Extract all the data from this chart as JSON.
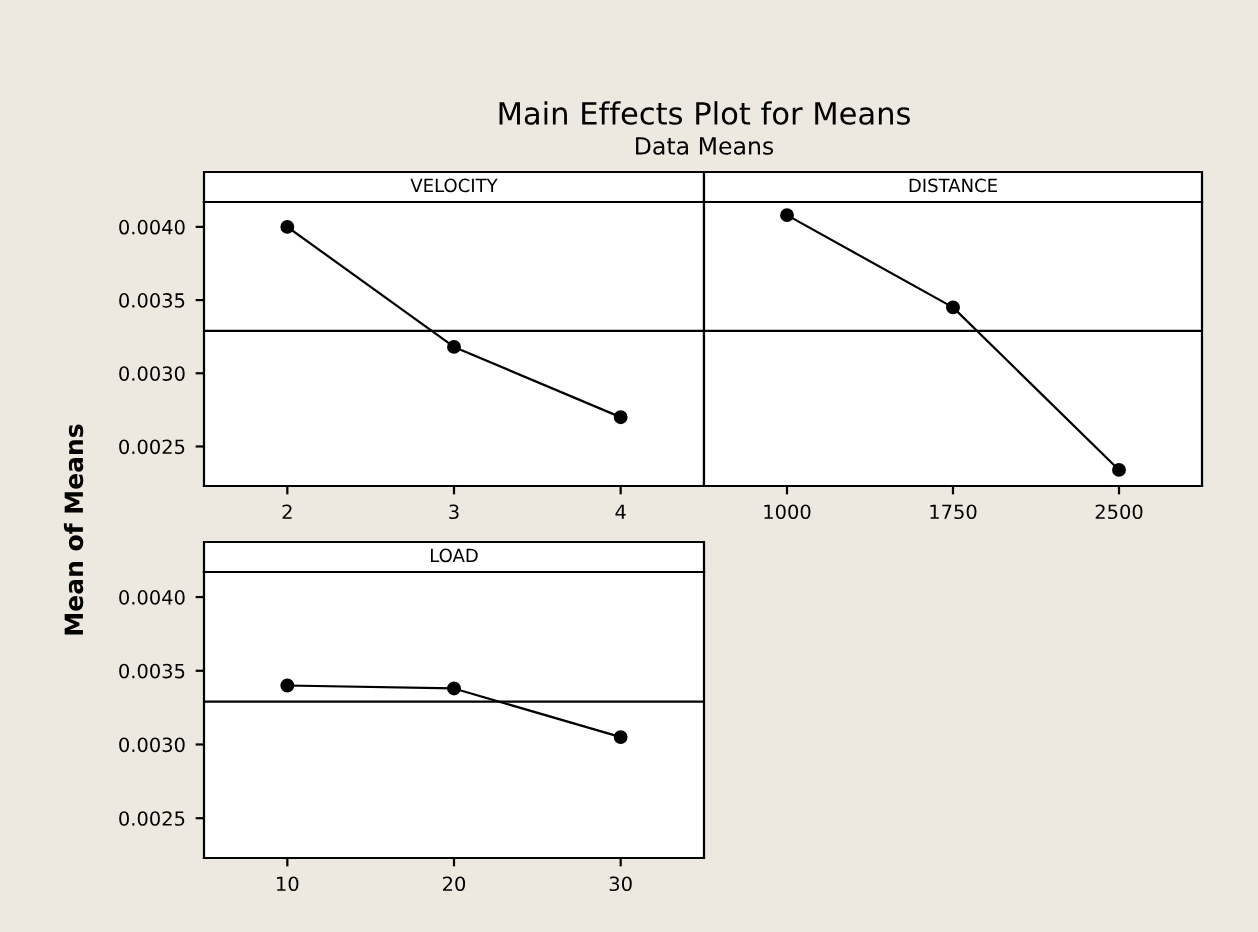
{
  "chart_data": [
    {
      "type": "line",
      "title": "VELOCITY",
      "annotations": [
        "Main Effects Plot for Means",
        "Data Means"
      ],
      "ylabel": "Mean of Means",
      "x": [
        2,
        3,
        4
      ],
      "series": [
        {
          "color": "#000000",
          "values": [
            0.004,
            0.00318,
            0.0027
          ]
        }
      ],
      "xlim": [
        1.5,
        4.5
      ],
      "xticks": [
        2,
        3,
        4
      ],
      "ylim": [
        0.00223,
        0.00417
      ],
      "yticks": [
        {
          "value": 0.0025,
          "label": "0.0025"
        },
        {
          "value": 0.003,
          "label": "0.0030"
        },
        {
          "value": 0.0035,
          "label": "0.0035"
        },
        {
          "value": 0.004,
          "label": "0.0040"
        }
      ],
      "ref_lines": [
        {
          "axis": "y",
          "value": 0.00329,
          "color": "#000000"
        }
      ],
      "marker": "circle",
      "line_style": "solid",
      "grid": false,
      "legend": false
    },
    {
      "type": "line",
      "title": "DISTANCE",
      "x": [
        1000,
        1750,
        2500
      ],
      "series": [
        {
          "color": "#000000",
          "values": [
            0.00408,
            0.00345,
            0.00234
          ]
        }
      ],
      "xlim": [
        625,
        2875
      ],
      "xticks": [
        1000,
        1750,
        2500
      ],
      "ylim": [
        0.00223,
        0.00417
      ],
      "yticks": [
        {
          "value": 0.0025,
          "label": null
        },
        {
          "value": 0.003,
          "label": null
        },
        {
          "value": 0.0035,
          "label": null
        },
        {
          "value": 0.004,
          "label": null
        }
      ],
      "tick_labels": "x",
      "ref_lines": [
        {
          "axis": "y",
          "value": 0.00329,
          "color": "#000000"
        }
      ],
      "marker": "circle",
      "line_style": "solid",
      "grid": false,
      "legend": false
    },
    {
      "type": "line",
      "title": "LOAD",
      "x": [
        10,
        20,
        30
      ],
      "series": [
        {
          "color": "#000000",
          "values": [
            0.0034,
            0.00338,
            0.00305
          ]
        }
      ],
      "xlim": [
        5,
        35
      ],
      "xticks": [
        10,
        20,
        30
      ],
      "ylim": [
        0.00223,
        0.00417
      ],
      "yticks": [
        {
          "value": 0.0025,
          "label": "0.0025"
        },
        {
          "value": 0.003,
          "label": "0.0030"
        },
        {
          "value": 0.0035,
          "label": "0.0035"
        },
        {
          "value": 0.004,
          "label": "0.0040"
        }
      ],
      "ref_lines": [
        {
          "axis": "y",
          "value": 0.00329,
          "color": "#000000"
        }
      ],
      "marker": "circle",
      "line_style": "solid",
      "grid": false,
      "legend": false
    }
  ]
}
